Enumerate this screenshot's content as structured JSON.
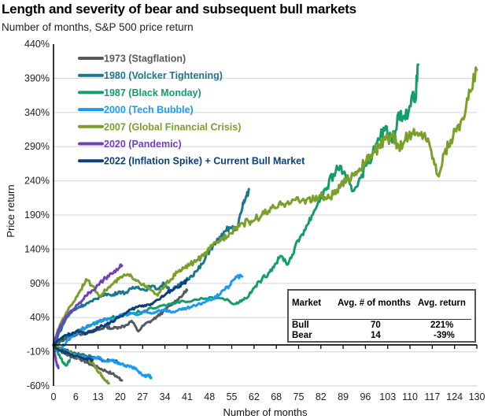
{
  "title": "Length and severity of bear and subsequent bull markets",
  "subtitle": "Number of months, S&P 500 price return",
  "chart_data": {
    "type": "line",
    "title": "Length and severity of bear and subsequent bull markets",
    "subtitle": "Number of months, S&P 500 price return",
    "xlabel": "Number of months",
    "ylabel": "Price return",
    "xlim": [
      0,
      130
    ],
    "ylim": [
      -60,
      440
    ],
    "x_ticks": [
      "0",
      "6",
      "13",
      "20",
      "27",
      "34",
      "41",
      "48",
      "55",
      "62",
      "68",
      "75",
      "82",
      "89",
      "96",
      "103",
      "110",
      "117",
      "124",
      "130"
    ],
    "y_ticks": [
      "440%",
      "390%",
      "340%",
      "290%",
      "240%",
      "190%",
      "140%",
      "90%",
      "40%",
      "-10%",
      "-60%"
    ],
    "y_tick_values": [
      440,
      390,
      340,
      290,
      240,
      190,
      140,
      90,
      40,
      -10,
      -60
    ],
    "grid": "horizontal",
    "legend_position": "top-left",
    "series": [
      {
        "name": "1973 (Stagflation)",
        "color": "#555a5e",
        "bull": [
          [
            0,
            0
          ],
          [
            2,
            5
          ],
          [
            4,
            10
          ],
          [
            6,
            14
          ],
          [
            8,
            16
          ],
          [
            10,
            18
          ],
          [
            12,
            20
          ],
          [
            14,
            22
          ],
          [
            16,
            27
          ],
          [
            18,
            24
          ],
          [
            20,
            26
          ],
          [
            22,
            28
          ],
          [
            24,
            35
          ],
          [
            26,
            20
          ],
          [
            28,
            30
          ],
          [
            30,
            35
          ],
          [
            32,
            42
          ],
          [
            34,
            50
          ],
          [
            36,
            58
          ],
          [
            38,
            66
          ],
          [
            40,
            75
          ],
          [
            41,
            80
          ]
        ],
        "bear": [
          [
            0,
            0
          ],
          [
            2,
            -8
          ],
          [
            4,
            -14
          ],
          [
            6,
            -18
          ],
          [
            8,
            -20
          ],
          [
            10,
            -25
          ],
          [
            12,
            -30
          ],
          [
            14,
            -34
          ],
          [
            16,
            -38
          ],
          [
            18,
            -42
          ],
          [
            20,
            -48
          ],
          [
            21,
            -52
          ]
        ]
      },
      {
        "name": "1980 (Volcker Tightening)",
        "color": "#19788c",
        "bull": [
          [
            0,
            0
          ],
          [
            2,
            20
          ],
          [
            4,
            40
          ],
          [
            6,
            50
          ],
          [
            8,
            56
          ],
          [
            10,
            60
          ],
          [
            12,
            64
          ],
          [
            14,
            70
          ],
          [
            16,
            75
          ],
          [
            18,
            72
          ],
          [
            20,
            78
          ],
          [
            22,
            76
          ],
          [
            24,
            82
          ],
          [
            26,
            85
          ],
          [
            28,
            80
          ],
          [
            30,
            86
          ],
          [
            32,
            82
          ],
          [
            34,
            90
          ],
          [
            36,
            80
          ],
          [
            38,
            85
          ],
          [
            40,
            92
          ],
          [
            42,
            100
          ],
          [
            44,
            108
          ],
          [
            46,
            120
          ],
          [
            48,
            140
          ],
          [
            50,
            150
          ],
          [
            52,
            160
          ],
          [
            54,
            172
          ],
          [
            56,
            168
          ],
          [
            58,
            200
          ],
          [
            59,
            215
          ],
          [
            60,
            228
          ]
        ],
        "bear": [
          [
            0,
            0
          ],
          [
            2,
            -4
          ],
          [
            4,
            -8
          ],
          [
            6,
            -12
          ],
          [
            8,
            -14
          ],
          [
            10,
            -16
          ],
          [
            12,
            -18
          ],
          [
            14,
            -20
          ],
          [
            16,
            -24
          ],
          [
            18,
            -22
          ],
          [
            20,
            -26
          ]
        ]
      },
      {
        "name": "1987 (Black Monday)",
        "color": "#139d6d",
        "bull": [
          [
            0,
            0
          ],
          [
            2,
            8
          ],
          [
            4,
            14
          ],
          [
            6,
            18
          ],
          [
            8,
            22
          ],
          [
            10,
            26
          ],
          [
            12,
            30
          ],
          [
            14,
            34
          ],
          [
            16,
            38
          ],
          [
            18,
            40
          ],
          [
            20,
            42
          ],
          [
            24,
            46
          ],
          [
            28,
            50
          ],
          [
            32,
            55
          ],
          [
            36,
            60
          ],
          [
            40,
            64
          ],
          [
            44,
            66
          ],
          [
            48,
            70
          ],
          [
            52,
            68
          ],
          [
            56,
            60
          ],
          [
            58,
            66
          ],
          [
            60,
            72
          ],
          [
            62,
            86
          ],
          [
            64,
            96
          ],
          [
            66,
            105
          ],
          [
            68,
            118
          ],
          [
            70,
            130
          ],
          [
            72,
            118
          ],
          [
            74,
            140
          ],
          [
            76,
            160
          ],
          [
            78,
            176
          ],
          [
            80,
            196
          ],
          [
            82,
            215
          ],
          [
            84,
            230
          ],
          [
            86,
            250
          ],
          [
            88,
            262
          ],
          [
            90,
            240
          ],
          [
            92,
            225
          ],
          [
            94,
            244
          ],
          [
            96,
            262
          ],
          [
            98,
            280
          ],
          [
            100,
            300
          ],
          [
            102,
            320
          ],
          [
            104,
            296
          ],
          [
            106,
            340
          ],
          [
            108,
            330
          ],
          [
            110,
            365
          ],
          [
            111,
            355
          ],
          [
            112,
            410
          ]
        ],
        "bear": [
          [
            0,
            0
          ],
          [
            1,
            -8
          ],
          [
            2,
            -18
          ],
          [
            3,
            -26
          ],
          [
            4,
            -30
          ],
          [
            5,
            -22
          ]
        ]
      },
      {
        "name": "2000 (Tech Bubble)",
        "color": "#1a9af0",
        "bull": [
          [
            0,
            0
          ],
          [
            2,
            -8
          ],
          [
            4,
            5
          ],
          [
            6,
            14
          ],
          [
            8,
            20
          ],
          [
            10,
            26
          ],
          [
            12,
            30
          ],
          [
            14,
            34
          ],
          [
            16,
            38
          ],
          [
            18,
            36
          ],
          [
            20,
            42
          ],
          [
            22,
            44
          ],
          [
            24,
            46
          ],
          [
            26,
            44
          ],
          [
            28,
            48
          ],
          [
            30,
            46
          ],
          [
            32,
            50
          ],
          [
            34,
            52
          ],
          [
            36,
            48
          ],
          [
            38,
            50
          ],
          [
            40,
            52
          ],
          [
            42,
            55
          ],
          [
            44,
            58
          ],
          [
            46,
            62
          ],
          [
            48,
            66
          ],
          [
            50,
            70
          ],
          [
            52,
            80
          ],
          [
            54,
            86
          ],
          [
            56,
            100
          ],
          [
            58,
            100
          ]
        ],
        "bear": [
          [
            0,
            0
          ],
          [
            2,
            -6
          ],
          [
            4,
            -10
          ],
          [
            6,
            -14
          ],
          [
            8,
            -16
          ],
          [
            10,
            -18
          ],
          [
            12,
            -20
          ],
          [
            14,
            -18
          ],
          [
            16,
            -24
          ],
          [
            18,
            -22
          ],
          [
            20,
            -28
          ],
          [
            22,
            -30
          ],
          [
            24,
            -32
          ],
          [
            26,
            -38
          ],
          [
            28,
            -46
          ],
          [
            29,
            -44
          ],
          [
            30,
            -48
          ]
        ]
      },
      {
        "name": "2007 (Global Financial Crisis)",
        "color": "#7a9f2a",
        "bull": [
          [
            0,
            0
          ],
          [
            2,
            30
          ],
          [
            4,
            48
          ],
          [
            6,
            62
          ],
          [
            8,
            78
          ],
          [
            10,
            96
          ],
          [
            12,
            86
          ],
          [
            14,
            72
          ],
          [
            16,
            80
          ],
          [
            18,
            88
          ],
          [
            20,
            96
          ],
          [
            22,
            102
          ],
          [
            24,
            100
          ],
          [
            26,
            94
          ],
          [
            28,
            86
          ],
          [
            30,
            80
          ],
          [
            32,
            72
          ],
          [
            34,
            86
          ],
          [
            36,
            96
          ],
          [
            38,
            106
          ],
          [
            40,
            112
          ],
          [
            42,
            118
          ],
          [
            44,
            124
          ],
          [
            46,
            130
          ],
          [
            48,
            140
          ],
          [
            50,
            150
          ],
          [
            52,
            156
          ],
          [
            54,
            164
          ],
          [
            56,
            172
          ],
          [
            58,
            178
          ],
          [
            60,
            180
          ],
          [
            62,
            184
          ],
          [
            64,
            190
          ],
          [
            66,
            196
          ],
          [
            68,
            200
          ],
          [
            70,
            205
          ],
          [
            72,
            210
          ],
          [
            74,
            212
          ],
          [
            76,
            210
          ],
          [
            78,
            214
          ],
          [
            80,
            212
          ],
          [
            82,
            218
          ],
          [
            84,
            214
          ],
          [
            86,
            220
          ],
          [
            88,
            230
          ],
          [
            90,
            240
          ],
          [
            92,
            250
          ],
          [
            94,
            258
          ],
          [
            96,
            268
          ],
          [
            98,
            280
          ],
          [
            100,
            290
          ],
          [
            102,
            300
          ],
          [
            104,
            305
          ],
          [
            106,
            290
          ],
          [
            108,
            300
          ],
          [
            110,
            310
          ],
          [
            112,
            306
          ],
          [
            114,
            310
          ],
          [
            116,
            284
          ],
          [
            118,
            248
          ],
          [
            120,
            280
          ],
          [
            122,
            300
          ],
          [
            124,
            320
          ],
          [
            126,
            330
          ],
          [
            128,
            370
          ],
          [
            130,
            402
          ]
        ],
        "bear": [
          [
            0,
            0
          ],
          [
            2,
            -6
          ],
          [
            4,
            -10
          ],
          [
            6,
            -14
          ],
          [
            8,
            -18
          ],
          [
            10,
            -20
          ],
          [
            12,
            -26
          ],
          [
            13,
            -34
          ],
          [
            14,
            -40
          ],
          [
            15,
            -46
          ],
          [
            16,
            -52
          ],
          [
            17,
            -56
          ]
        ]
      },
      {
        "name": "2020 (Pandemic)",
        "color": "#7040bd",
        "bull": [
          [
            0,
            0
          ],
          [
            1,
            15
          ],
          [
            2,
            26
          ],
          [
            3,
            34
          ],
          [
            4,
            42
          ],
          [
            6,
            52
          ],
          [
            8,
            62
          ],
          [
            10,
            72
          ],
          [
            12,
            80
          ],
          [
            14,
            88
          ],
          [
            16,
            98
          ],
          [
            18,
            104
          ],
          [
            20,
            112
          ],
          [
            21,
            116
          ]
        ],
        "bear": [
          [
            0,
            0
          ],
          [
            0.5,
            -15
          ],
          [
            1,
            -28
          ],
          [
            1.5,
            -34
          ]
        ]
      },
      {
        "name": "2022 (Inflation Spike) + Current Bull Market",
        "color": "#0c3f7d",
        "bull": [
          [
            0,
            0
          ],
          [
            2,
            8
          ],
          [
            4,
            14
          ],
          [
            6,
            18
          ],
          [
            8,
            20
          ],
          [
            10,
            16
          ],
          [
            12,
            20
          ],
          [
            14,
            26
          ],
          [
            16,
            30
          ],
          [
            18,
            34
          ],
          [
            20,
            40
          ],
          [
            22,
            46
          ],
          [
            24,
            52
          ],
          [
            26,
            56
          ],
          [
            28,
            58
          ],
          [
            30,
            60
          ],
          [
            32,
            66
          ],
          [
            34,
            72
          ],
          [
            36,
            80
          ],
          [
            38,
            84
          ],
          [
            40,
            90
          ],
          [
            41,
            95
          ]
        ],
        "bear": [
          [
            0,
            0
          ],
          [
            2,
            -8
          ],
          [
            4,
            -12
          ],
          [
            6,
            -16
          ],
          [
            8,
            -18
          ],
          [
            10,
            -20
          ],
          [
            12,
            -22
          ]
        ]
      }
    ],
    "summary_table": {
      "headers": [
        "Market",
        "Avg. # of months",
        "Avg. return"
      ],
      "rows": [
        [
          "Bull",
          "70",
          "221%"
        ],
        [
          "Bear",
          "14",
          "-39%"
        ]
      ]
    }
  }
}
